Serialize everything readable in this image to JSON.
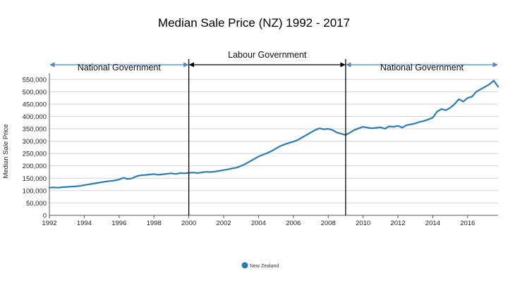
{
  "chart_data": {
    "type": "line",
    "title": "Median Sale Price (NZ) 1992 - 2017",
    "ylabel": "Median Sale Price",
    "xlabel": "",
    "xlim": [
      1992,
      2017.75
    ],
    "ylim": [
      0,
      575000
    ],
    "x_ticks": [
      "1992",
      "1994",
      "1996",
      "1998",
      "2000",
      "2002",
      "2004",
      "2006",
      "2008",
      "2010",
      "2012",
      "2014",
      "2016"
    ],
    "y_ticks": [
      "0",
      "50,000",
      "100,000",
      "150,000",
      "200,000",
      "250,000",
      "300,000",
      "350,000",
      "400,000",
      "450,000",
      "500,000",
      "550,000"
    ],
    "grid": true,
    "legend_position": "bottom",
    "series": [
      {
        "name": "New Zealand",
        "color": "#2b7bb9",
        "x": [
          1992.0,
          1992.25,
          1992.5,
          1992.75,
          1993.0,
          1993.25,
          1993.5,
          1993.75,
          1994.0,
          1994.25,
          1994.5,
          1994.75,
          1995.0,
          1995.25,
          1995.5,
          1995.75,
          1996.0,
          1996.25,
          1996.5,
          1996.75,
          1997.0,
          1997.25,
          1997.5,
          1997.75,
          1998.0,
          1998.25,
          1998.5,
          1998.75,
          1999.0,
          1999.25,
          1999.5,
          1999.75,
          2000.0,
          2000.25,
          2000.5,
          2000.75,
          2001.0,
          2001.25,
          2001.5,
          2001.75,
          2002.0,
          2002.25,
          2002.5,
          2002.75,
          2003.0,
          2003.25,
          2003.5,
          2003.75,
          2004.0,
          2004.25,
          2004.5,
          2004.75,
          2005.0,
          2005.25,
          2005.5,
          2005.75,
          2006.0,
          2006.25,
          2006.5,
          2006.75,
          2007.0,
          2007.25,
          2007.5,
          2007.75,
          2008.0,
          2008.25,
          2008.5,
          2008.75,
          2009.0,
          2009.25,
          2009.5,
          2009.75,
          2010.0,
          2010.25,
          2010.5,
          2010.75,
          2011.0,
          2011.25,
          2011.5,
          2011.75,
          2012.0,
          2012.25,
          2012.5,
          2012.75,
          2013.0,
          2013.25,
          2013.5,
          2013.75,
          2014.0,
          2014.25,
          2014.5,
          2014.75,
          2015.0,
          2015.25,
          2015.5,
          2015.75,
          2016.0,
          2016.25,
          2016.5,
          2016.75,
          2017.0,
          2017.25,
          2017.5,
          2017.75
        ],
        "values": [
          112000,
          113000,
          112000,
          114000,
          115000,
          116000,
          117000,
          119000,
          122000,
          125000,
          128000,
          131000,
          134000,
          137000,
          139000,
          141000,
          145000,
          152000,
          147000,
          150000,
          158000,
          162000,
          163000,
          165000,
          167000,
          164000,
          166000,
          168000,
          170000,
          167000,
          171000,
          170000,
          172000,
          173000,
          171000,
          174000,
          176000,
          175000,
          177000,
          180000,
          183000,
          186000,
          190000,
          193000,
          200000,
          208000,
          218000,
          228000,
          238000,
          245000,
          252000,
          260000,
          270000,
          280000,
          287000,
          293000,
          298000,
          305000,
          315000,
          325000,
          335000,
          345000,
          352000,
          348000,
          350000,
          345000,
          335000,
          330000,
          325000,
          335000,
          345000,
          352000,
          358000,
          355000,
          352000,
          354000,
          356000,
          350000,
          360000,
          358000,
          362000,
          355000,
          365000,
          368000,
          372000,
          378000,
          382000,
          388000,
          395000,
          420000,
          430000,
          425000,
          435000,
          450000,
          470000,
          460000,
          475000,
          480000,
          500000,
          510000,
          520000,
          530000,
          545000,
          520000
        ]
      }
    ],
    "annotations": [
      {
        "label": "National Government",
        "from": 1992,
        "to": 2000
      },
      {
        "label": "Labour Government",
        "from": 2000,
        "to": 2009
      },
      {
        "label": "National Government",
        "from": 2009,
        "to": 2017.75
      }
    ],
    "period_markers": [
      2000,
      2009
    ]
  }
}
